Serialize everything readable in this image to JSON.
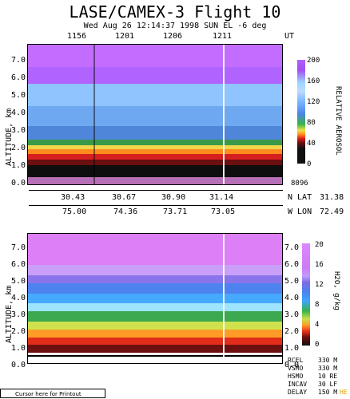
{
  "title": "LASE/CAMEX-3 Flight 10",
  "subtitle": "Wed Aug 26 12:14:37 1998  SUN EL  -6 deg",
  "chart_data": [
    {
      "type": "heatmap",
      "ylabel": "ALTITUDE, km",
      "ylim": [
        0.0,
        7.5
      ],
      "yticks": [
        "7.0",
        "6.0",
        "5.0",
        "4.0",
        "3.0",
        "2.0",
        "1.0",
        "0.0"
      ],
      "top_time_ticks": [
        "1156",
        "1201",
        "1206",
        "1211"
      ],
      "top_time_unit": "UT",
      "lat_ticks": [
        "30.43",
        "30.67",
        "30.90",
        "31.14"
      ],
      "lat_label": "N LAT",
      "lat_value": "31.38",
      "lon_ticks": [
        "75.00",
        "74.36",
        "73.71",
        "73.05"
      ],
      "lon_label": "W LON",
      "lon_value": "72.49",
      "colorbar": {
        "label": "RELATIVE AEROSOL",
        "ticks": [
          "200",
          "160",
          "120",
          "80",
          "40",
          "0"
        ],
        "range": [
          0,
          200
        ],
        "extra": "8096"
      }
    },
    {
      "type": "heatmap",
      "ylabel": "ALTITUDE, km",
      "ylim": [
        0.0,
        7.5
      ],
      "yticks": [
        "7.0",
        "6.0",
        "5.0",
        "4.0",
        "3.0",
        "2.0",
        "1.0",
        "0.0"
      ],
      "yticks_right": [
        "7.0",
        "6.0",
        "5.0",
        "4.0",
        "3.0",
        "2.0",
        "1.0",
        "0.0"
      ],
      "colorbar": {
        "label": "H2O, g/kg",
        "ticks": [
          "20",
          "16",
          "12",
          "8",
          "4",
          "0"
        ],
        "range": [
          0,
          20
        ]
      }
    }
  ],
  "status": [
    {
      "label": "RCEL",
      "value": "330 M"
    },
    {
      "label": "VSMO",
      "value": "330 M"
    },
    {
      "label": "HSMO",
      "value": "10 RE"
    },
    {
      "label": "INCAV",
      "value": "30 LF"
    },
    {
      "label": "DELAY",
      "value": "150 M",
      "note": "HE"
    }
  ],
  "cursor_text": "Cursor here for Printout",
  "colors": {
    "aerosol_scale": [
      "#ff99ff",
      "#b060ff",
      "#7eb7ff",
      "#39b54a",
      "#f0e14a",
      "#ff8a1a",
      "#d81b1b",
      "#101010"
    ],
    "h2o_scale": [
      "#dd88ff",
      "#7e6de6",
      "#3ea5ff",
      "#37b24c",
      "#c6e048",
      "#ff9c23",
      "#e8321b",
      "#111111"
    ]
  }
}
